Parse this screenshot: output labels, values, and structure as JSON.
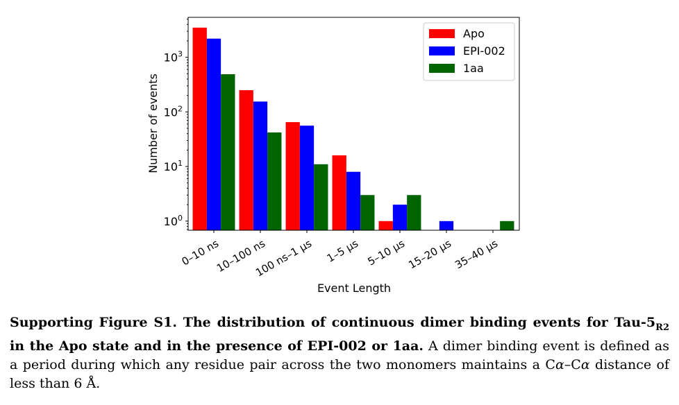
{
  "chart_data": {
    "type": "bar",
    "title": "",
    "xlabel": "Event Length",
    "ylabel": "Number of events",
    "yscale": "log",
    "ylim": [
      0.68,
      5400
    ],
    "yticks": [
      {
        "value": 1,
        "base": "10",
        "exp": "0"
      },
      {
        "value": 10,
        "base": "10",
        "exp": "1"
      },
      {
        "value": 100,
        "base": "10",
        "exp": "2"
      },
      {
        "value": 1000,
        "base": "10",
        "exp": "3"
      }
    ],
    "categories": [
      "0–10 ns",
      "10–100 ns",
      "100 ns–1 µs",
      "1–5 µs",
      "5–10 µs",
      "15–20 µs",
      "35–40 µs"
    ],
    "series": [
      {
        "name": "Apo",
        "color": "#ff0000",
        "values": [
          3500,
          250,
          65,
          16,
          1,
          0,
          0
        ]
      },
      {
        "name": "EPI-002",
        "color": "#0000ff",
        "values": [
          2200,
          155,
          56,
          8,
          2,
          1,
          0
        ]
      },
      {
        "name": "1aa",
        "color": "#006400",
        "values": [
          490,
          42,
          11,
          3,
          3,
          0,
          1
        ]
      }
    ],
    "legend_position": "top-right",
    "grid": false
  },
  "caption": {
    "label": "Supporting Figure S1.",
    "title_a": " The distribution of continuous dimer binding events for Tau-5",
    "title_sub": "R2",
    "title_b": " in the Apo state and in the presence of EPI-002 or 1aa.",
    "body_a": " A dimer binding event is defined as a period during which any residue pair across the two monomers maintains a C",
    "alpha1": "α",
    "body_b": "–C",
    "alpha2": "α",
    "body_c": " distance of less than 6 Å."
  }
}
